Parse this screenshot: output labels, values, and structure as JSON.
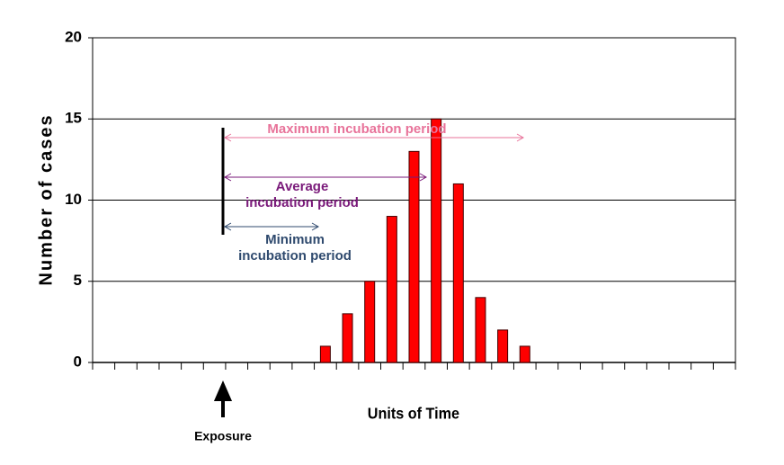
{
  "chart_data": {
    "type": "bar",
    "y_label": "Number of cases",
    "x_label": "Units of Time",
    "categories": [
      null,
      null,
      null,
      null,
      null,
      null,
      null,
      null,
      null,
      null,
      null,
      null,
      null,
      null,
      null,
      null,
      null,
      null,
      null,
      null,
      null,
      null,
      null,
      null,
      null,
      null,
      null,
      null,
      null
    ],
    "values": [
      0,
      0,
      0,
      0,
      0,
      0,
      0,
      0,
      0,
      0,
      1,
      3,
      5,
      9,
      13,
      15,
      11,
      4,
      2,
      1,
      0,
      0,
      0,
      0,
      0,
      0,
      0,
      0,
      0
    ],
    "color": "#ff0000",
    "ylim": [
      0,
      20
    ],
    "yticks": [
      0,
      5,
      10,
      15,
      20
    ],
    "grid": true,
    "annotations": {
      "exposure": {
        "text": "Exposure"
      },
      "maximum": {
        "lines": [
          "Maximum incubation period"
        ],
        "color": "#e8739a"
      },
      "average": {
        "lines": [
          "Average",
          "incubation period"
        ],
        "color": "#7a1a7a"
      },
      "minimum": {
        "lines": [
          "Minimum",
          "incubation period"
        ],
        "color": "#2f4a6e"
      }
    }
  }
}
